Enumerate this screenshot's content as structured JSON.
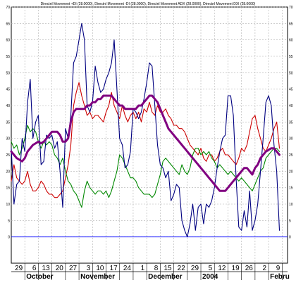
{
  "chart_data": {
    "type": "line",
    "title": "Directnl Movement +DI (28.0000), Directnl Movement -DI (28.0000), Directnl Movement ADX (28.0000), Directnl Movement DXI (28.0000)",
    "xlabel": "",
    "ylabel": "",
    "ylim": [
      -8,
      70
    ],
    "y_ticks": [
      0,
      5,
      10,
      15,
      20,
      25,
      30,
      35,
      40,
      45,
      50,
      55,
      60,
      65,
      70
    ],
    "x_tick_labels": [
      "29",
      "6",
      "13",
      "20",
      "27",
      "3",
      "10",
      "17",
      "24",
      "1",
      "8",
      "15",
      "22",
      "29",
      "5",
      "12",
      "19",
      "26",
      "2",
      "9"
    ],
    "x_tick_positions": [
      5,
      10,
      15,
      20,
      25,
      30,
      35,
      40,
      45,
      50,
      55,
      60,
      65,
      70,
      75,
      80,
      85,
      90,
      95,
      100
    ],
    "month_labels": [
      {
        "label": "October",
        "x": 5
      },
      {
        "label": "November",
        "x": 25
      },
      {
        "label": "December",
        "x": 50
      },
      {
        "label": "2004",
        "x": 70
      },
      {
        "label": "Febru",
        "x": 95
      }
    ],
    "grid": true,
    "zero_line_value": 0,
    "x_range": [
      0,
      102
    ],
    "series": [
      {
        "color": "#cc0000",
        "x": [
          0,
          1,
          2,
          3,
          4,
          5,
          6,
          7,
          8,
          9,
          10,
          11,
          12,
          13,
          14,
          15,
          16,
          17,
          18,
          19,
          20,
          21,
          22,
          23,
          24,
          25,
          26,
          27,
          28,
          29,
          30,
          31,
          32,
          33,
          34,
          35,
          36,
          37,
          38,
          39,
          40,
          41,
          42,
          43,
          44,
          45,
          46,
          47,
          48,
          49,
          50,
          51,
          52,
          53,
          54,
          55,
          56,
          57,
          58,
          59,
          60,
          61,
          62,
          63,
          64,
          65,
          66,
          67,
          68,
          69,
          70,
          71,
          72,
          73,
          74,
          75,
          76,
          77,
          78,
          79,
          80,
          81,
          82,
          83,
          84,
          85,
          86,
          87,
          88,
          89,
          90,
          91,
          92,
          93,
          94,
          95,
          96,
          97,
          98,
          99
        ],
        "y": [
          17,
          22,
          18,
          17,
          16,
          17,
          20,
          16,
          14,
          14,
          15,
          17,
          16,
          14,
          13,
          13,
          12,
          12,
          13,
          14,
          18,
          22,
          28,
          40,
          44,
          47,
          43,
          40,
          37,
          38,
          36,
          37,
          37,
          36,
          35,
          38,
          40,
          44,
          40,
          38,
          36,
          40,
          37,
          35,
          37,
          38,
          36,
          38,
          35,
          39,
          38,
          41,
          38,
          37,
          40,
          38,
          38,
          39,
          37,
          36,
          34,
          34,
          33,
          33,
          32,
          30,
          28,
          27,
          26,
          25,
          27,
          24,
          23,
          25,
          25,
          23,
          24,
          26,
          27,
          25,
          25,
          24,
          23,
          22,
          24,
          27,
          26,
          28,
          32,
          36,
          37,
          33,
          30,
          27,
          26,
          28,
          30,
          33,
          35,
          27
        ]
      },
      {
        "color": "#008800",
        "x": [
          0,
          1,
          2,
          3,
          4,
          5,
          6,
          7,
          8,
          9,
          10,
          11,
          12,
          13,
          14,
          15,
          16,
          17,
          18,
          19,
          20,
          21,
          22,
          23,
          24,
          25,
          26,
          27,
          28,
          29,
          30,
          31,
          32,
          33,
          34,
          35,
          36,
          37,
          38,
          39,
          40,
          41,
          42,
          43,
          44,
          45,
          46,
          47,
          48,
          49,
          50,
          51,
          52,
          53,
          54,
          55,
          56,
          57,
          58,
          59,
          60,
          61,
          62,
          63,
          64,
          65,
          66,
          67,
          68,
          69,
          70,
          71,
          72,
          73,
          74,
          75,
          76,
          77,
          78,
          79,
          80,
          81,
          82,
          83,
          84,
          85,
          86,
          87,
          88,
          89,
          90,
          91,
          92,
          93,
          94,
          95,
          96,
          97,
          98,
          99
        ],
        "y": [
          29,
          27,
          28,
          25,
          27,
          30,
          34,
          32,
          33,
          32,
          29,
          27,
          29,
          28,
          29,
          28,
          25,
          24,
          22,
          24,
          20,
          17,
          16,
          14,
          13,
          11,
          9,
          14,
          17,
          15,
          14,
          13,
          14,
          14,
          13,
          14,
          12,
          14,
          17,
          20,
          25,
          24,
          22,
          20,
          18,
          18,
          17,
          15,
          14,
          13,
          13,
          13,
          12,
          13,
          16,
          19,
          23,
          24,
          23,
          22,
          21,
          20,
          19,
          22,
          20,
          19,
          21,
          25,
          27,
          27,
          25,
          26,
          25,
          26,
          24,
          23,
          21,
          22,
          21,
          20,
          19,
          20,
          19,
          18,
          17,
          18,
          17,
          16,
          15,
          14,
          16,
          18,
          20,
          21,
          24,
          25,
          26,
          27,
          27,
          26
        ]
      },
      {
        "color": "#000080",
        "x": [
          0,
          1,
          2,
          3,
          4,
          5,
          6,
          7,
          8,
          9,
          10,
          11,
          12,
          13,
          14,
          15,
          16,
          17,
          18,
          19,
          20,
          21,
          22,
          23,
          24,
          25,
          26,
          27,
          28,
          29,
          30,
          31,
          32,
          33,
          34,
          35,
          36,
          37,
          38,
          39,
          40,
          41,
          42,
          43,
          44,
          45,
          46,
          47,
          48,
          49,
          50,
          51,
          52,
          53,
          54,
          55,
          56,
          57,
          58,
          59,
          60,
          61,
          62,
          63,
          64,
          65,
          66,
          67,
          68,
          69,
          70,
          71,
          72,
          73,
          74,
          75,
          76,
          77,
          78,
          79,
          80,
          81,
          82,
          83,
          84,
          85,
          86,
          87,
          88,
          89,
          90,
          91,
          92,
          93,
          94,
          95,
          96,
          97,
          98,
          99
        ],
        "y": [
          27,
          10,
          16,
          17,
          30,
          26,
          41,
          48,
          30,
          35,
          37,
          22,
          23,
          31,
          30,
          31,
          27,
          29,
          20,
          9,
          33,
          30,
          37,
          53,
          55,
          60,
          65,
          60,
          40,
          38,
          41,
          52,
          47,
          44,
          45,
          48,
          50,
          53,
          60,
          45,
          30,
          28,
          21,
          22,
          26,
          39,
          38,
          36,
          38,
          42,
          47,
          53,
          52,
          40,
          28,
          22,
          21,
          18,
          20,
          11,
          13,
          16,
          15,
          5,
          2,
          0,
          4,
          10,
          2,
          9,
          10,
          4,
          10,
          9,
          11,
          15,
          21,
          26,
          30,
          31,
          43,
          43,
          37,
          18,
          3,
          2,
          8,
          3,
          14,
          2,
          5,
          10,
          20,
          30,
          41,
          43,
          40,
          28,
          20,
          2
        ]
      },
      {
        "color": "#800080",
        "x": [
          0,
          1,
          2,
          3,
          4,
          5,
          6,
          7,
          8,
          9,
          10,
          11,
          12,
          13,
          14,
          15,
          16,
          17,
          18,
          19,
          20,
          21,
          22,
          23,
          24,
          25,
          26,
          27,
          28,
          29,
          30,
          31,
          32,
          33,
          34,
          35,
          36,
          37,
          38,
          39,
          40,
          41,
          42,
          43,
          44,
          45,
          46,
          47,
          48,
          49,
          50,
          51,
          52,
          53,
          54,
          55,
          56,
          57,
          58,
          59,
          60,
          61,
          62,
          63,
          64,
          65,
          66,
          67,
          68,
          69,
          70,
          71,
          72,
          73,
          74,
          75,
          76,
          77,
          78,
          79,
          80,
          81,
          82,
          83,
          84,
          85,
          86,
          87,
          88,
          89,
          90,
          91,
          92,
          93,
          94,
          95,
          96,
          97,
          98,
          99
        ],
        "y": [
          26,
          25,
          24,
          23.5,
          23,
          24,
          26,
          27,
          28,
          28.5,
          29,
          28.5,
          29,
          30,
          31,
          32,
          32,
          32,
          31,
          29,
          29,
          30,
          35,
          38,
          39,
          39,
          39,
          39,
          40,
          40,
          41,
          41,
          42,
          42,
          43,
          43,
          43,
          43,
          42,
          41,
          40,
          40,
          39,
          39,
          39,
          39,
          39,
          40,
          40,
          41,
          42,
          43,
          43,
          42,
          41,
          39,
          37,
          35,
          33,
          32,
          31,
          30,
          29,
          28,
          27,
          26,
          25,
          24,
          23,
          22,
          21,
          20,
          19,
          18,
          17,
          16,
          15,
          14,
          14,
          14,
          15,
          16,
          17,
          18,
          19,
          20,
          21,
          21,
          20,
          19,
          21,
          22,
          24,
          25,
          26,
          26.5,
          27,
          27,
          26,
          25
        ]
      }
    ]
  }
}
